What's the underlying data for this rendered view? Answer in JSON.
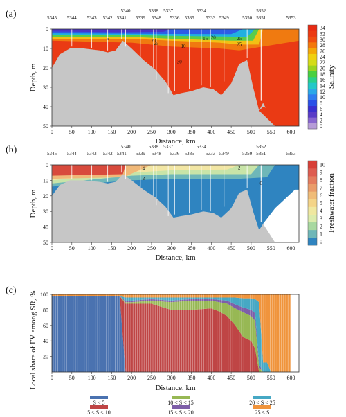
{
  "chart_data": [
    {
      "id": "a",
      "panel_label": "(a)",
      "type": "heatmap",
      "xlabel": "Distance, km",
      "ylabel": "Depth, m",
      "xlim": [
        0,
        620
      ],
      "ylim": [
        50,
        0
      ],
      "xticks": [
        0,
        50,
        100,
        150,
        200,
        250,
        300,
        350,
        400,
        450,
        500,
        550,
        600
      ],
      "yticks": [
        0,
        10,
        20,
        30,
        40,
        50
      ],
      "colorbar": {
        "label": "Salinity",
        "ticks": [
          0,
          2,
          4,
          6,
          8,
          10,
          12,
          14,
          16,
          18,
          20,
          22,
          24,
          26,
          28,
          30,
          32,
          34
        ],
        "colors": [
          "#b69cd8",
          "#8866d0",
          "#5a3cc8",
          "#3a2fd0",
          "#2a50e8",
          "#2e7cf0",
          "#2aa8e8",
          "#22c8c8",
          "#28d08a",
          "#48d040",
          "#9ad420",
          "#d4dc18",
          "#f0d010",
          "#f4a808",
          "#f4780c",
          "#f04e10",
          "#ec3a12",
          "#e82a12"
        ]
      },
      "stations": [
        {
          "name": "5345",
          "km": 0
        },
        {
          "name": "5344",
          "km": 50
        },
        {
          "name": "5343",
          "km": 100
        },
        {
          "name": "5342",
          "km": 140
        },
        {
          "name": "5341",
          "km": 175
        },
        {
          "name": "5340",
          "km": 185,
          "upper": true
        },
        {
          "name": "5339",
          "km": 222
        },
        {
          "name": "5338",
          "km": 255,
          "upper": true
        },
        {
          "name": "5348",
          "km": 262
        },
        {
          "name": "5337",
          "km": 292,
          "upper": true
        },
        {
          "name": "5336",
          "km": 308
        },
        {
          "name": "5335",
          "km": 345
        },
        {
          "name": "5334",
          "km": 375,
          "upper": true
        },
        {
          "name": "5333",
          "km": 398
        },
        {
          "name": "5349",
          "km": 432
        },
        {
          "name": "5350",
          "km": 490
        },
        {
          "name": "5351",
          "km": 525
        },
        {
          "name": "5352",
          "km": 525,
          "upper": true
        },
        {
          "name": "5353",
          "km": 600
        }
      ],
      "contour_labels": [
        "5",
        "10",
        "15",
        "20",
        "20",
        "25",
        "25",
        "30",
        "25"
      ],
      "bottom_profile_km": [
        0,
        20,
        45,
        80,
        120,
        140,
        160,
        178,
        200,
        230,
        260,
        285,
        305,
        325,
        350,
        380,
        405,
        425,
        450,
        470,
        490,
        505,
        520,
        530,
        560
      ],
      "bottom_profile_depth_m": [
        20,
        13,
        10,
        10,
        11,
        12,
        11,
        6,
        10,
        16,
        21,
        27,
        34,
        33,
        32,
        30,
        31,
        34,
        28,
        18,
        16,
        30,
        42,
        38,
        50
      ]
    },
    {
      "id": "b",
      "panel_label": "(b)",
      "type": "heatmap",
      "xlabel": "Distance, km",
      "ylabel": "Depth, m",
      "xlim": [
        0,
        620
      ],
      "ylim": [
        50,
        0
      ],
      "xticks": [
        0,
        50,
        100,
        150,
        200,
        250,
        300,
        350,
        400,
        450,
        500,
        550,
        600
      ],
      "yticks": [
        0,
        10,
        20,
        30,
        40,
        50
      ],
      "colorbar": {
        "label": "Freshwater fraction",
        "ticks": [
          0,
          1,
          2,
          3,
          4,
          5,
          6,
          7,
          8,
          9,
          10
        ],
        "colors": [
          "#2f84c0",
          "#6fb7b8",
          "#a8d8a0",
          "#dcecac",
          "#f0e8a0",
          "#f4d488",
          "#f0bc78",
          "#ea9c6a",
          "#e47c5e",
          "#de5c50",
          "#d84038"
        ]
      },
      "contour_labels": [
        "2",
        "4",
        "2",
        "0"
      ],
      "bottom_profile_km": [
        0,
        20,
        45,
        80,
        120,
        140,
        160,
        178,
        200,
        230,
        260,
        285,
        305,
        325,
        350,
        380,
        405,
        425,
        450,
        470,
        490,
        505,
        520,
        530,
        560
      ],
      "bottom_profile_depth_m": [
        20,
        13,
        10,
        10,
        11,
        12,
        11,
        6,
        10,
        16,
        21,
        27,
        34,
        33,
        32,
        30,
        31,
        34,
        28,
        18,
        16,
        30,
        42,
        38,
        50
      ]
    },
    {
      "id": "c",
      "panel_label": "(c)",
      "type": "area",
      "xlabel": "Distance, km",
      "ylabel": "Local share of FV among SR, %",
      "xlim": [
        0,
        620
      ],
      "ylim": [
        0,
        100
      ],
      "xticks": [
        0,
        50,
        100,
        150,
        200,
        250,
        300,
        350,
        400,
        450,
        500,
        550,
        600
      ],
      "yticks": [
        20,
        40,
        60,
        80,
        100
      ],
      "x": [
        0,
        50,
        100,
        150,
        170,
        185,
        200,
        250,
        300,
        350,
        400,
        420,
        440,
        460,
        480,
        500,
        510,
        520,
        530,
        540,
        550,
        560,
        600
      ],
      "series": [
        {
          "name": "S < 5",
          "color": "#4a72b0",
          "values": [
            98,
            98,
            98,
            98,
            98,
            0,
            0,
            0,
            0,
            0,
            0,
            0,
            0,
            0,
            0,
            0,
            0,
            0,
            0,
            0,
            0,
            0,
            0
          ]
        },
        {
          "name": "5 < S < 10",
          "color": "#bf4545",
          "values": [
            0,
            0,
            0,
            0,
            0,
            88,
            88,
            88,
            80,
            80,
            82,
            78,
            72,
            60,
            45,
            40,
            30,
            0,
            0,
            0,
            0,
            0,
            0
          ]
        },
        {
          "name": "10 < S < 15",
          "color": "#97b854",
          "values": [
            0,
            0,
            0,
            0,
            0,
            2,
            2,
            4,
            10,
            12,
            10,
            12,
            16,
            22,
            32,
            32,
            36,
            6,
            0,
            0,
            0,
            0,
            0
          ]
        },
        {
          "name": "15 < S < 20",
          "color": "#7d5ea8",
          "values": [
            0,
            0,
            0,
            0,
            0,
            2,
            2,
            2,
            2,
            2,
            2,
            3,
            4,
            5,
            6,
            8,
            10,
            4,
            0,
            0,
            0,
            0,
            0
          ]
        },
        {
          "name": "20 < S < 25",
          "color": "#46a8c4",
          "values": [
            0,
            0,
            0,
            0,
            0,
            4,
            4,
            2,
            4,
            2,
            2,
            3,
            4,
            9,
            12,
            15,
            18,
            80,
            12,
            12,
            0,
            0,
            0
          ]
        },
        {
          "name": "25 < S",
          "color": "#f0943c",
          "values": [
            2,
            2,
            2,
            2,
            2,
            4,
            4,
            4,
            4,
            4,
            4,
            4,
            4,
            4,
            5,
            5,
            6,
            10,
            88,
            88,
            100,
            100,
            100
          ]
        }
      ],
      "legend_position": "bottom"
    }
  ]
}
